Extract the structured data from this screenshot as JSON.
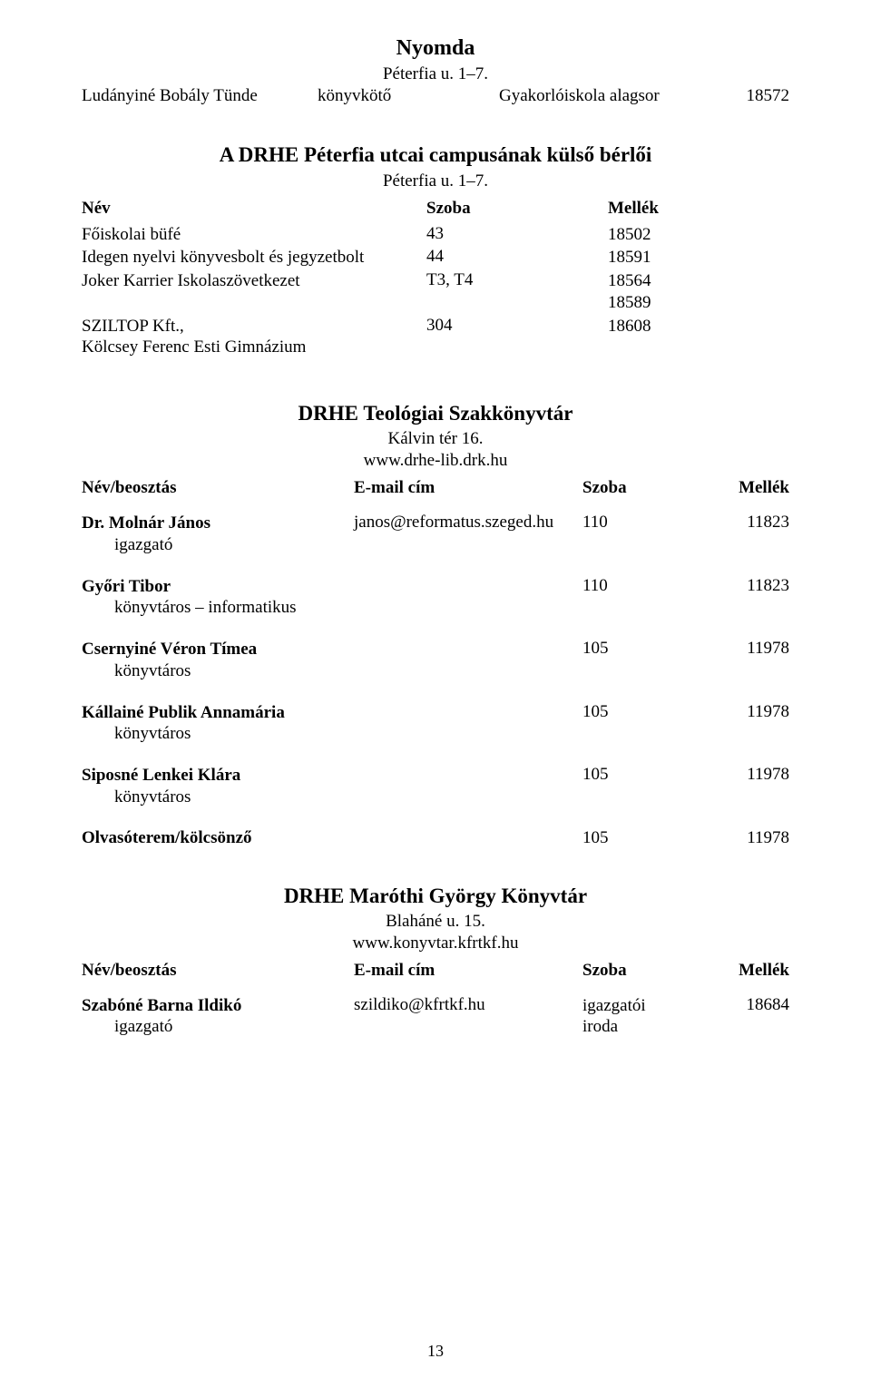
{
  "colors": {
    "background": "#ffffff",
    "text": "#000000"
  },
  "typography": {
    "family": "Times New Roman",
    "title_size_pt": 18,
    "subtitle_size_pt": 14,
    "body_size_pt": 14
  },
  "pageNumber": "13",
  "nyomda": {
    "title": "Nyomda",
    "subtitle": "Péterfia u. 1–7.",
    "row": {
      "name": "Ludányiné Bobály Tünde",
      "role": "könyvkötő",
      "place": "Gyakorlóiskola alagsor",
      "ext": "18572"
    }
  },
  "berlok": {
    "title": "A DRHE Péterfia utcai campusának külső bérlői",
    "subtitle": "Péterfia u. 1–7.",
    "headers": {
      "name": "Név",
      "room": "Szoba",
      "ext": "Mellék"
    },
    "rows": [
      {
        "name": "Főiskolai büfé",
        "room": "43",
        "ext": "18502"
      },
      {
        "name": "Idegen nyelvi könyvesbolt és jegyzetbolt",
        "room": "44",
        "ext": "18591"
      },
      {
        "name": "Joker Karrier Iskolaszövetkezet",
        "room": "T3, T4",
        "ext": "18564\n18589"
      },
      {
        "name": "SZILTOP Kft.,\nKölcsey Ferenc Esti Gimnázium",
        "room": "304",
        "ext": "18608"
      }
    ]
  },
  "teologiai": {
    "title": "DRHE Teológiai Szakkönyvtár",
    "addr": "Kálvin tér 16.",
    "url": "www.drhe-lib.drk.hu",
    "headers": {
      "name": "Név/beosztás",
      "email": "E-mail cím",
      "room": "Szoba",
      "ext": "Mellék"
    },
    "staff": [
      {
        "name": "Dr. Molnár János",
        "role": "igazgató",
        "email": "janos@reformatus.szeged.hu",
        "room": "110",
        "ext": "11823"
      },
      {
        "name": "Győri Tibor",
        "role": "könyvtáros – informatikus",
        "email": "",
        "room": "110",
        "ext": "11823"
      },
      {
        "name": "Csernyiné Véron Tímea",
        "role": "könyvtáros",
        "email": "",
        "room": "105",
        "ext": "11978"
      },
      {
        "name": "Kállainé Publik Annamária",
        "role": "könyvtáros",
        "email": "",
        "room": "105",
        "ext": "11978"
      },
      {
        "name": "Siposné Lenkei Klára",
        "role": "könyvtáros",
        "email": "",
        "room": "105",
        "ext": "11978"
      }
    ],
    "lastRow": {
      "name": "Olvasóterem/kölcsönző",
      "room": "105",
      "ext": "11978"
    }
  },
  "marothi": {
    "title": "DRHE Maróthi György Könyvtár",
    "addr": "Blaháné u. 15.",
    "url": "www.konyvtar.kfrtkf.hu",
    "headers": {
      "name": "Név/beosztás",
      "email": "E-mail cím",
      "room": "Szoba",
      "ext": "Mellék"
    },
    "staff": [
      {
        "name": "Szabóné Barna Ildikó",
        "role": "igazgató",
        "email": "szildiko@kfrtkf.hu",
        "room": "igazgatói\niroda",
        "ext": "18684"
      }
    ]
  }
}
